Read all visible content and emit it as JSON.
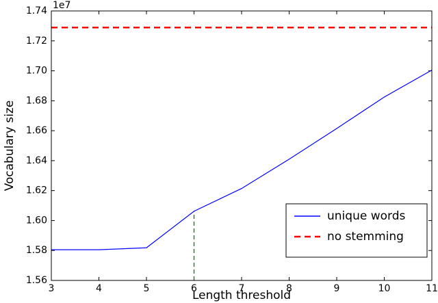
{
  "chart_data": {
    "type": "line",
    "x_label": "Length threshold",
    "y_label": "Vocabulary size",
    "y_offset_label": "1e7",
    "x": [
      3,
      4,
      5,
      6,
      7,
      8,
      9,
      10,
      11
    ],
    "series": [
      {
        "name": "unique words",
        "color": "#0000ff",
        "style": "solid",
        "values": [
          1.5805,
          1.5805,
          1.5818,
          1.6062,
          1.6214,
          1.641,
          1.6615,
          1.6825,
          1.7005
        ]
      },
      {
        "name": "no stemming",
        "color": "#ff0000",
        "style": "dashed",
        "values": [
          1.7289,
          1.7289,
          1.7289,
          1.7289,
          1.7289,
          1.7289,
          1.7289,
          1.7289,
          1.7289
        ]
      }
    ],
    "marker_x": 6,
    "marker_color": "#008000",
    "xlim": [
      3,
      11
    ],
    "xticks": [
      3,
      4,
      5,
      6,
      7,
      8,
      9,
      10,
      11
    ],
    "ylim": [
      1.56,
      1.74
    ],
    "yticks": [
      1.56,
      1.58,
      {
        "value": 1.6,
        "label": "1.60"
      },
      1.62,
      1.64,
      1.66,
      1.68,
      {
        "value": 1.7,
        "label": "1.70"
      },
      1.72,
      1.74
    ],
    "legend": "lower right",
    "grid": false
  }
}
